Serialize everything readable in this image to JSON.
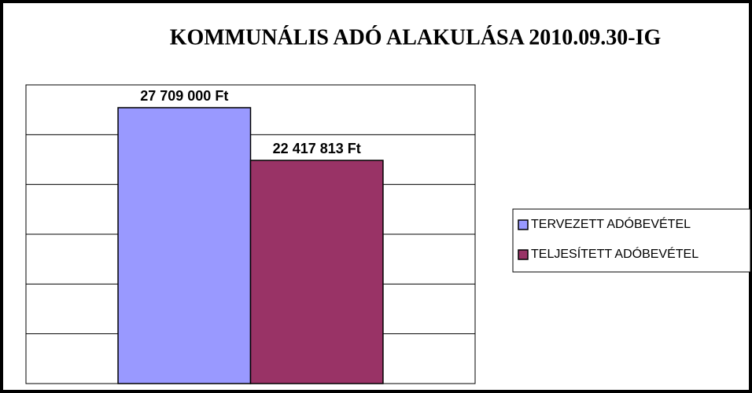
{
  "chart_data": {
    "type": "bar",
    "title": "KOMMUNÁLIS ADÓ ALAKULÁSA 2010.09.30-IG",
    "categories": [
      null
    ],
    "series": [
      {
        "name": "TERVEZETT ADÓBEVÉTEL",
        "color": "#9999ff",
        "values": [
          27709000
        ],
        "value_labels": [
          "27 709 000 Ft"
        ]
      },
      {
        "name": "TELJESÍTETT ADÓBEVÉTEL",
        "color": "#993366",
        "values": [
          22417813
        ],
        "value_labels": [
          "22 417 813 Ft"
        ]
      }
    ],
    "ylim": [
      0,
      30000000
    ],
    "yticks": [
      0,
      5000000,
      10000000,
      15000000,
      20000000,
      25000000,
      30000000
    ],
    "grid": true,
    "legend": "right"
  }
}
